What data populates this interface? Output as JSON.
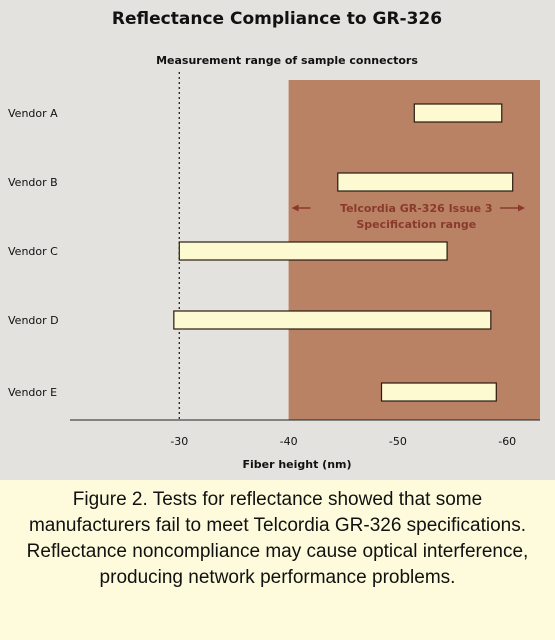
{
  "chart_data": {
    "type": "bar",
    "title": "Reflectance Compliance to GR-326",
    "subtitle": "Measurement range of sample connectors",
    "xlabel": "Fiber height (nm)",
    "ylabel": "",
    "x_ticks": [
      -30,
      -40,
      -50,
      -60
    ],
    "xlim": [
      -20,
      -63
    ],
    "x_axis_reversed": true,
    "grid": false,
    "categories": [
      "Vendor A",
      "Vendor B",
      "Vendor C",
      "Vendor D",
      "Vendor E"
    ],
    "ranges": [
      {
        "category": "Vendor A",
        "from": -51.5,
        "to": -59.5
      },
      {
        "category": "Vendor B",
        "from": -44.5,
        "to": -60.5
      },
      {
        "category": "Vendor C",
        "from": -30,
        "to": -54.5
      },
      {
        "category": "Vendor D",
        "from": -29.5,
        "to": -58.5
      },
      {
        "category": "Vendor E",
        "from": -48.5,
        "to": -59
      }
    ],
    "spec_region": {
      "from": -40,
      "to": -63,
      "label_line1": "Telcordia GR-326 Issue 3",
      "label_line2": "Specification range"
    },
    "reference_line": -30,
    "colors": {
      "spec_region": "#b98265",
      "spec_label": "#8a3a2c",
      "bar_fill": "#fdfad2",
      "bar_stroke": "#2a1a10",
      "background": "#e4e2de"
    }
  },
  "caption": "Figure 2. Tests for reflectance showed that some manufacturers fail to meet Telcordia GR-326 specifications. Reflectance noncompliance may cause optical interference, producing network performance problems."
}
